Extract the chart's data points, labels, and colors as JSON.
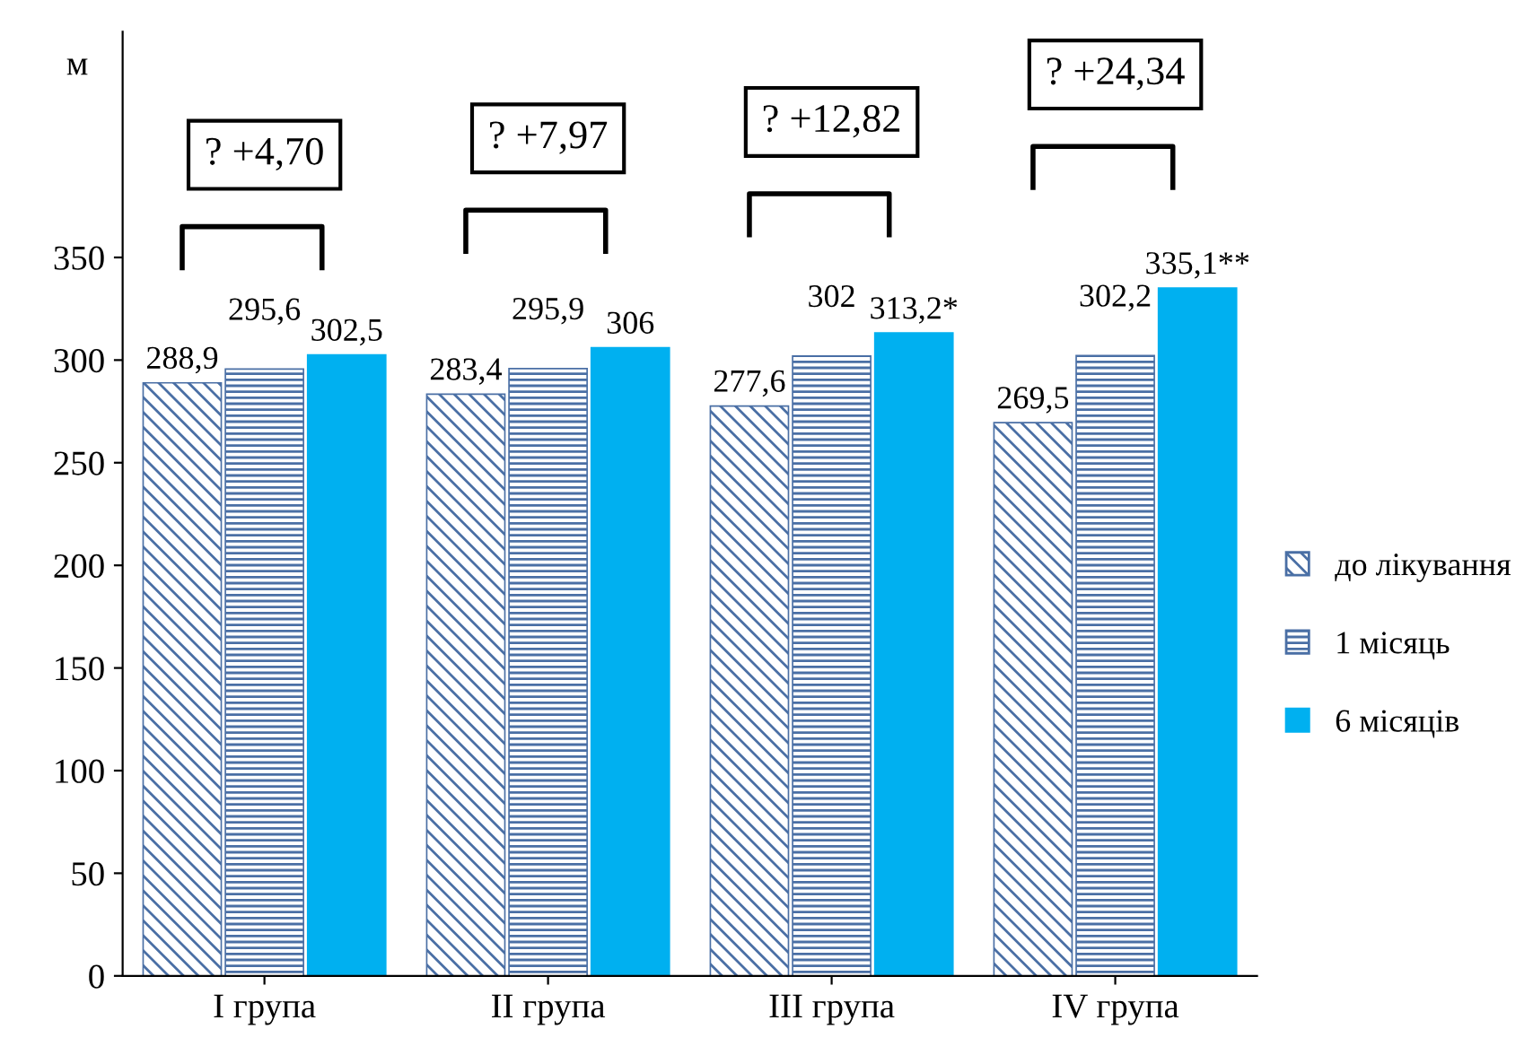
{
  "chart_data": {
    "type": "bar",
    "ylabel": "м",
    "categories": [
      "I група",
      "II група",
      "III група",
      "IV група"
    ],
    "series": [
      {
        "name": "до лікування",
        "color": "#4a6fa5",
        "values": [
          288.9,
          283.4,
          277.6,
          269.5
        ],
        "value_labels": [
          "288,9",
          "283,4",
          "277,6",
          "269,5"
        ]
      },
      {
        "name": "1 місяць",
        "color": "#4a6fa5",
        "values": [
          295.6,
          295.9,
          302,
          302.2
        ],
        "value_labels": [
          "295,6",
          "295,9",
          "302",
          "302,2"
        ]
      },
      {
        "name": "6 місяців",
        "color": "#00b0f0",
        "values": [
          302.5,
          306,
          313.2,
          335.1
        ],
        "value_labels": [
          "302,5",
          "306",
          "313,2*",
          "335,1**"
        ]
      }
    ],
    "annotations": [
      "? +4,70",
      "? +7,97",
      "? +12,82",
      "? +24,34"
    ],
    "ylim": [
      0,
      460
    ],
    "yticks": [
      0,
      50,
      100,
      150,
      200,
      250,
      300,
      350
    ],
    "grid": false,
    "legend": "right"
  }
}
